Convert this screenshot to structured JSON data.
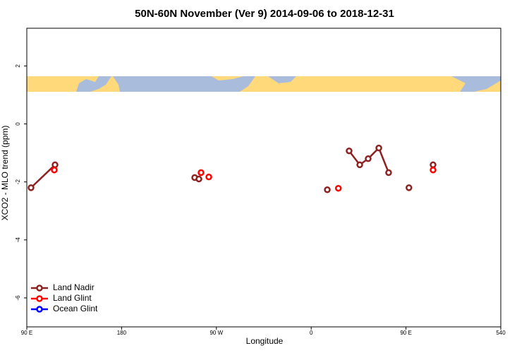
{
  "chart_data": {
    "type": "line",
    "title": "50N-60N November (Ver 9)   2014-09-06 to 2018-12-31",
    "x_label": "Longitude",
    "y_label": "XCO2 - MLO trend (ppm)",
    "xlim": [
      90,
      540
    ],
    "xticks": [
      {
        "value": 90,
        "label": "90 E"
      },
      180,
      {
        "value": 270,
        "label": "90 W"
      },
      {
        "value": 360,
        "label": "0"
      },
      {
        "value": 450,
        "label": "90 E"
      },
      540
    ],
    "ylim": [
      -7,
      3.3
    ],
    "yticks": [
      2,
      0,
      -2,
      -4,
      -6
    ],
    "legend": "bottom-left",
    "series": [
      {
        "name": "Land Nadir",
        "color": "#8b2323",
        "x": [
          94,
          116.8,
          null,
          249.4,
          null,
          253.4,
          null,
          375.3,
          null,
          396,
          406.1,
          414.1,
          424.2,
          433.5,
          null,
          452.8,
          null,
          475.7
        ],
        "values": [
          -2.2,
          -1.41,
          null,
          -1.85,
          null,
          -1.9,
          null,
          -2.27,
          null,
          -0.93,
          -1.41,
          -1.2,
          -0.83,
          -1.68,
          null,
          -2.2,
          null,
          -1.41
        ]
      },
      {
        "name": "Land Glint",
        "color": "#ff0000",
        "x": [
          116.1,
          null,
          255.4,
          null,
          262.8,
          null,
          385.8,
          null,
          475.7
        ],
        "values": [
          -1.59,
          null,
          -1.68,
          null,
          -1.83,
          null,
          -2.22,
          null,
          -1.59
        ]
      },
      {
        "name": "Ocean Glint",
        "color": "#0000ff",
        "x": [],
        "values": []
      }
    ]
  }
}
